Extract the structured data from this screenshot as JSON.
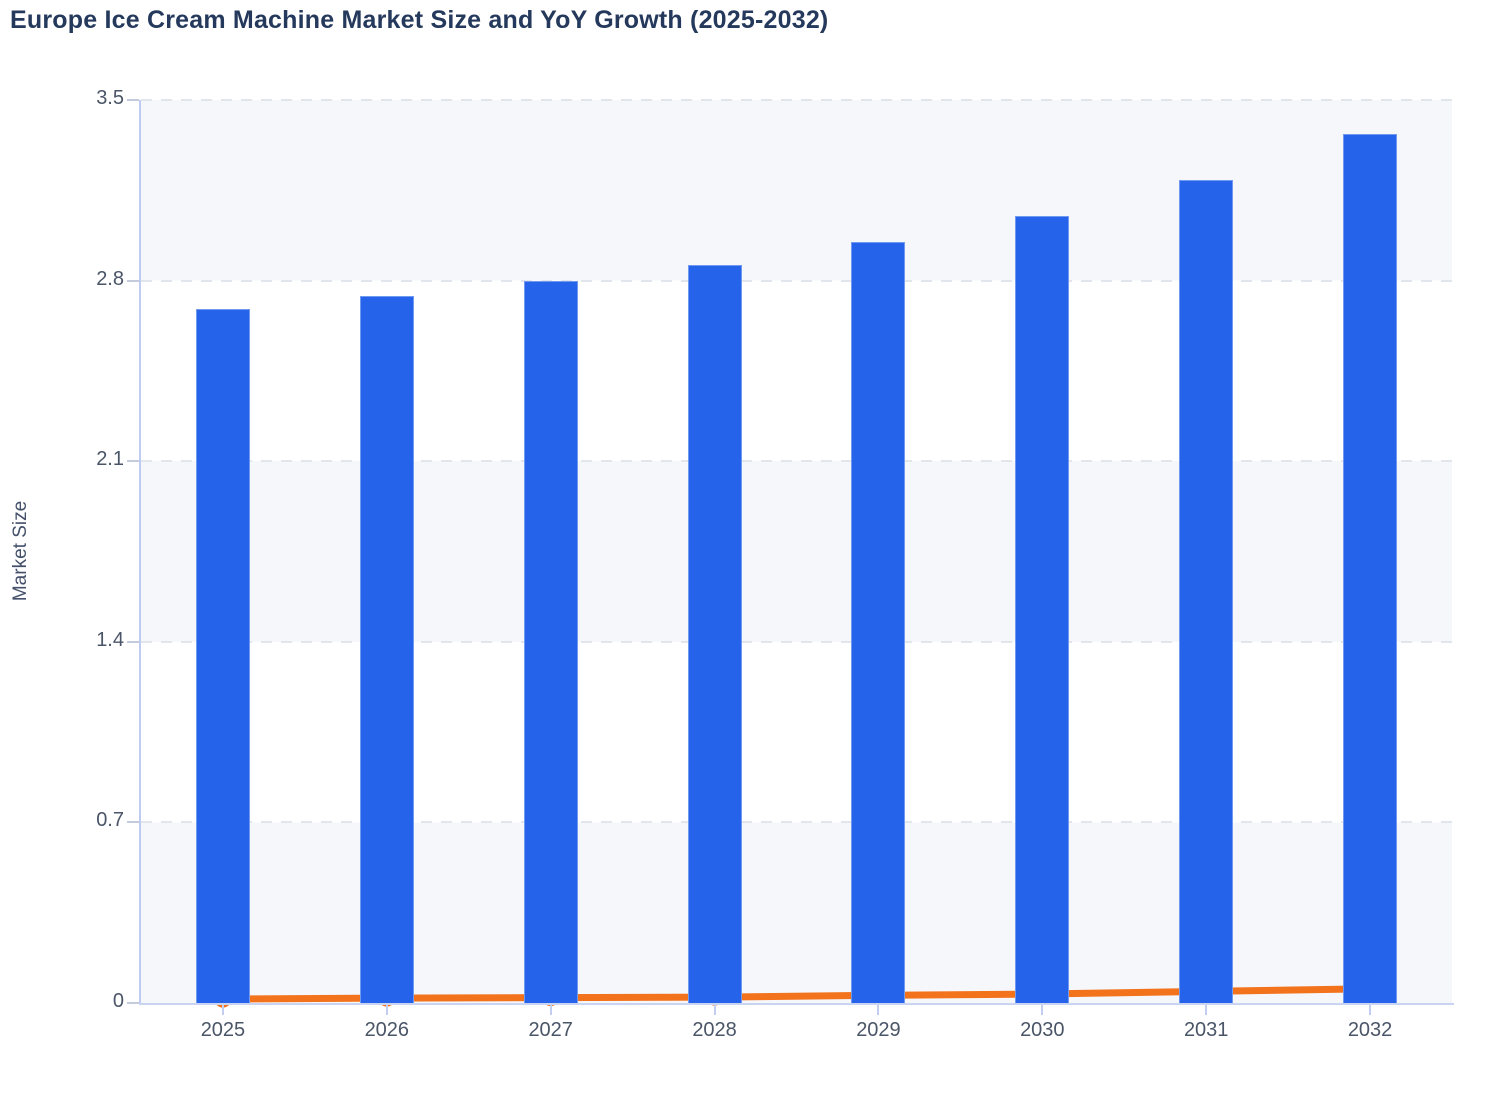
{
  "title": "Europe Ice Cream Machine Market Size and YoY Growth (2025-2032)",
  "colors": {
    "bar": "#2563eb",
    "line": "#f3731d",
    "band": "#f5f7fa",
    "gridline": "#e1e5ec",
    "axis": "#c3cff1",
    "tick_text": "#4a5567",
    "title_text": "#24395b"
  },
  "chart_data": {
    "type": "bar",
    "title": "Europe Ice Cream Machine Market Size and YoY Growth (2025-2032)",
    "categories": [
      "2025",
      "2026",
      "2027",
      "2028",
      "2029",
      "2030",
      "2031",
      "2032"
    ],
    "series": [
      {
        "name": "Market Size",
        "type": "bar",
        "color": "#2563eb",
        "values": [
          2.69,
          2.74,
          2.8,
          2.86,
          2.95,
          3.05,
          3.19,
          3.37
        ]
      },
      {
        "name": "YoY Growth",
        "type": "line",
        "color": "#f3731d",
        "values": [
          0.015,
          0.019,
          0.021,
          0.023,
          0.03,
          0.035,
          0.045,
          0.055
        ]
      }
    ],
    "xlabel": "",
    "ylabel": "Market Size",
    "ylim": [
      0,
      3.5
    ],
    "yticks": [
      0,
      0.7,
      1.4,
      2.1,
      2.8,
      3.5
    ],
    "grid": "horizontal-dashed",
    "legend_position": "none",
    "plot_background": "alternating horizontal bands"
  }
}
